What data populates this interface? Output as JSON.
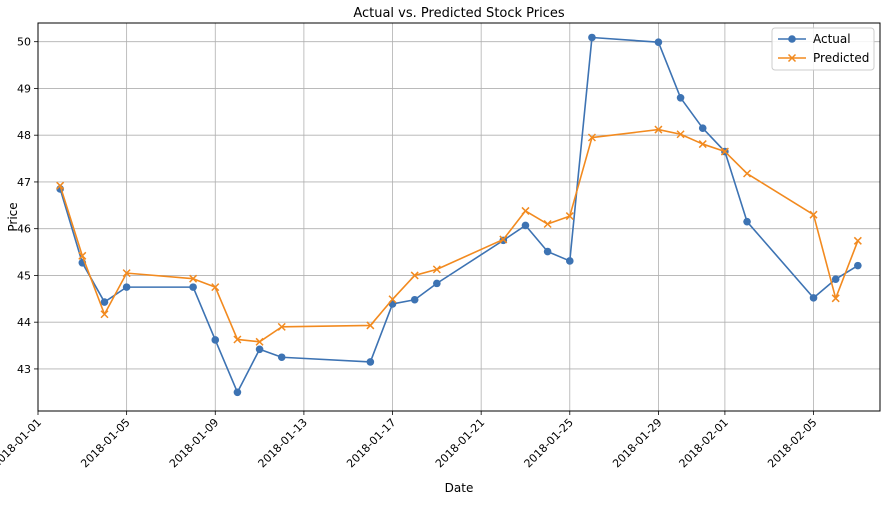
{
  "chart_data": {
    "type": "line",
    "title": "Actual vs. Predicted Stock Prices",
    "xlabel": "Date",
    "ylabel": "Price",
    "xlim": [
      "2018-01-01",
      "2018-02-08"
    ],
    "ylim": [
      42.1,
      50.4
    ],
    "x_ticks": [
      "2018-01-01",
      "2018-01-05",
      "2018-01-09",
      "2018-01-13",
      "2018-01-17",
      "2018-01-21",
      "2018-01-25",
      "2018-01-29",
      "2018-02-01",
      "2018-02-05"
    ],
    "y_ticks": [
      43,
      44,
      45,
      46,
      47,
      48,
      49,
      50
    ],
    "grid": true,
    "legend_position": "top-right",
    "x": [
      "2018-01-02",
      "2018-01-03",
      "2018-01-04",
      "2018-01-05",
      "2018-01-08",
      "2018-01-09",
      "2018-01-10",
      "2018-01-11",
      "2018-01-12",
      "2018-01-16",
      "2018-01-17",
      "2018-01-18",
      "2018-01-19",
      "2018-01-22",
      "2018-01-23",
      "2018-01-24",
      "2018-01-25",
      "2018-01-26",
      "2018-01-29",
      "2018-01-30",
      "2018-01-31",
      "2018-02-01",
      "2018-02-02",
      "2018-02-05",
      "2018-02-06",
      "2018-02-07"
    ],
    "series": [
      {
        "name": "Actual",
        "color": "#3d73b3",
        "marker": "circle",
        "values": [
          46.85,
          45.27,
          44.43,
          44.75,
          44.75,
          43.62,
          42.5,
          43.42,
          43.25,
          43.15,
          44.39,
          44.48,
          44.83,
          45.75,
          46.07,
          45.51,
          45.31,
          50.09,
          49.99,
          48.8,
          48.15,
          47.65,
          46.15,
          44.52,
          44.92,
          45.21
        ]
      },
      {
        "name": "Predicted",
        "color": "#f28a1f",
        "marker": "x",
        "values": [
          46.92,
          45.42,
          44.17,
          45.05,
          44.93,
          44.75,
          43.63,
          43.58,
          43.9,
          43.93,
          44.49,
          45.0,
          45.13,
          45.77,
          46.38,
          46.1,
          46.27,
          47.95,
          48.12,
          48.02,
          47.81,
          47.65,
          47.18,
          46.3,
          44.51,
          45.74
        ]
      }
    ]
  }
}
